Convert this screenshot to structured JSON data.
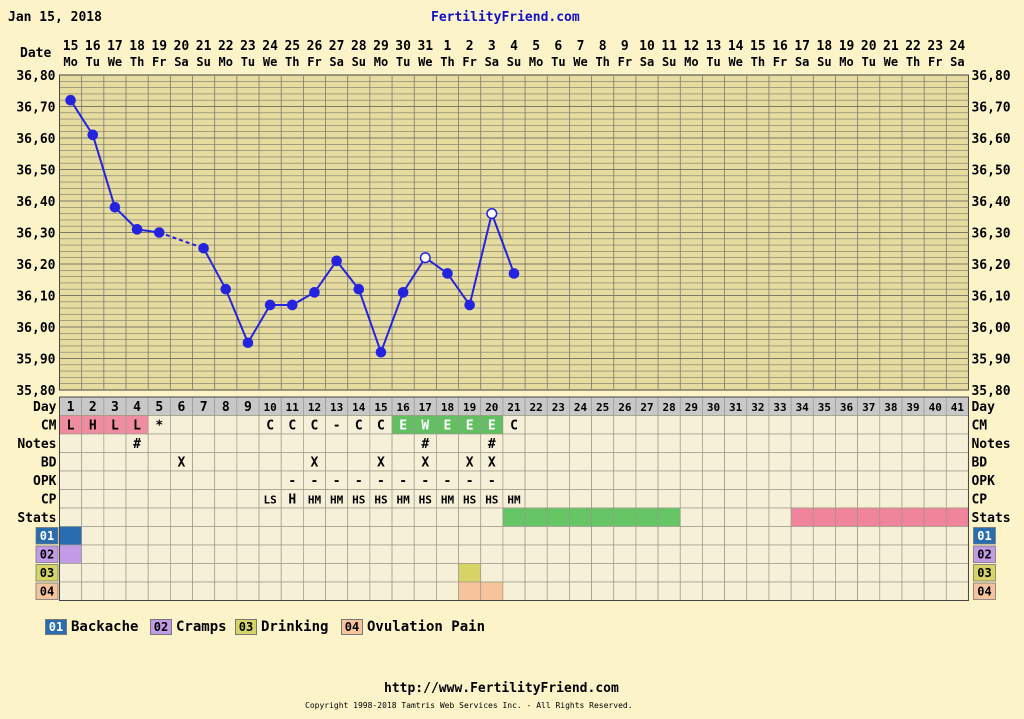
{
  "header": {
    "chart_date": "Jan 15, 2018",
    "site_title": "FertilityFriend.com"
  },
  "footer": {
    "url": "http://www.FertilityFriend.com",
    "copyright": "Copyright 1998-2018 Tamtris Web Services Inc. - All Rights Reserved."
  },
  "colors": {
    "background": "#fcf4c8",
    "grid_fill": "#e6dca0",
    "header_row": "#c8c8c8",
    "cell_fill": "#f6f0d8",
    "temp_line": "#2424e0",
    "cm_menstrual": "#f08ca0",
    "cm_fertile": "#62c062",
    "stats_green": "#66c666",
    "stats_pink": "#f0849a",
    "sym_backache": "#2a6cb0",
    "sym_cramps": "#c39ae6",
    "sym_drinking": "#d6d466",
    "sym_ovulation_pain": "#f6c49c"
  },
  "chart_data": {
    "type": "line",
    "title": "",
    "ylim": [
      35.8,
      36.8
    ],
    "y_ticks": [
      "36,80",
      "36,70",
      "36,60",
      "36,50",
      "36,40",
      "36,30",
      "36,20",
      "36,10",
      "36,00",
      "35,90",
      "35,80"
    ],
    "dates": [
      "15",
      "16",
      "17",
      "18",
      "19",
      "20",
      "21",
      "22",
      "23",
      "24",
      "25",
      "26",
      "27",
      "28",
      "29",
      "30",
      "31",
      "1",
      "2",
      "3",
      "4",
      "5",
      "6",
      "7",
      "8",
      "9",
      "10",
      "11",
      "12",
      "13",
      "14",
      "15",
      "16",
      "17",
      "18",
      "19",
      "20",
      "21",
      "22",
      "23",
      "24"
    ],
    "weekdays": [
      "Mo",
      "Tu",
      "We",
      "Th",
      "Fr",
      "Sa",
      "Su",
      "Mo",
      "Tu",
      "We",
      "Th",
      "Fr",
      "Sa",
      "Su",
      "Mo",
      "Tu",
      "We",
      "Th",
      "Fr",
      "Sa",
      "Su",
      "Mo",
      "Tu",
      "We",
      "Th",
      "Fr",
      "Sa",
      "Su",
      "Mo",
      "Tu",
      "We",
      "Th",
      "Fr",
      "Sa",
      "Su",
      "Mo",
      "Tu",
      "We",
      "Th",
      "Fr",
      "Sa"
    ],
    "cycle_days": [
      "1",
      "2",
      "3",
      "4",
      "5",
      "6",
      "7",
      "8",
      "9",
      "10",
      "11",
      "12",
      "13",
      "14",
      "15",
      "16",
      "17",
      "18",
      "19",
      "20",
      "21",
      "22",
      "23",
      "24",
      "25",
      "26",
      "27",
      "28",
      "29",
      "30",
      "31",
      "32",
      "33",
      "34",
      "35",
      "36",
      "37",
      "38",
      "39",
      "40",
      "41"
    ],
    "temps": [
      36.72,
      36.61,
      36.38,
      36.31,
      36.3,
      null,
      36.25,
      36.12,
      35.95,
      36.07,
      36.07,
      36.11,
      36.21,
      36.12,
      35.92,
      36.11,
      36.22,
      36.17,
      36.07,
      36.36,
      36.17
    ],
    "open_points": [
      16,
      19
    ],
    "dashed_segments": [
      [
        4,
        6
      ]
    ],
    "row_labels": [
      "Day",
      "CM",
      "Notes",
      "BD",
      "OPK",
      "CP",
      "Stats",
      "01",
      "02",
      "03",
      "04"
    ],
    "cm": [
      "L",
      "H",
      "L",
      "L",
      "*",
      "",
      "",
      "",
      "",
      "C",
      "C",
      "C",
      "-",
      "C",
      "C",
      "E",
      "W",
      "E",
      "E",
      "E",
      "C"
    ],
    "cm_highlight": {
      "menstrual": [
        0,
        1,
        2,
        3
      ],
      "fertile": [
        15,
        16,
        17,
        18,
        19
      ]
    },
    "notes": [
      "",
      "",
      "",
      "#",
      "",
      "",
      "",
      "",
      "",
      "",
      "",
      "",
      "",
      "",
      "",
      "",
      "#",
      "",
      "",
      "#",
      ""
    ],
    "bd": [
      "",
      "",
      "",
      "",
      "",
      "X",
      "",
      "",
      "",
      "",
      "",
      "X",
      "",
      "",
      "X",
      "",
      "X",
      "",
      "X",
      "X",
      ""
    ],
    "opk": [
      "",
      "",
      "",
      "",
      "",
      "",
      "",
      "",
      "",
      "",
      "-",
      "-",
      "-",
      "-",
      "-",
      "-",
      "-",
      "-",
      "-",
      "-",
      ""
    ],
    "cp": [
      "",
      "",
      "",
      "",
      "",
      "",
      "",
      "",
      "",
      "LS",
      "H",
      "HM",
      "HM",
      "HS",
      "HS",
      "HM",
      "HS",
      "HM",
      "HS",
      "HS",
      "HM"
    ],
    "stats_green_range": [
      20,
      27
    ],
    "stats_pink_range": [
      33,
      40
    ],
    "symptom_marks": {
      "01": [
        0
      ],
      "02": [
        0
      ],
      "03": [
        18
      ],
      "04": [
        18,
        19
      ]
    },
    "y_label": "Date"
  },
  "legend": [
    {
      "code": "01",
      "label": "Backache",
      "color_key": "sym_backache"
    },
    {
      "code": "02",
      "label": "Cramps",
      "color_key": "sym_cramps"
    },
    {
      "code": "03",
      "label": "Drinking",
      "color_key": "sym_drinking"
    },
    {
      "code": "04",
      "label": "Ovulation Pain",
      "color_key": "sym_ovulation_pain"
    }
  ]
}
